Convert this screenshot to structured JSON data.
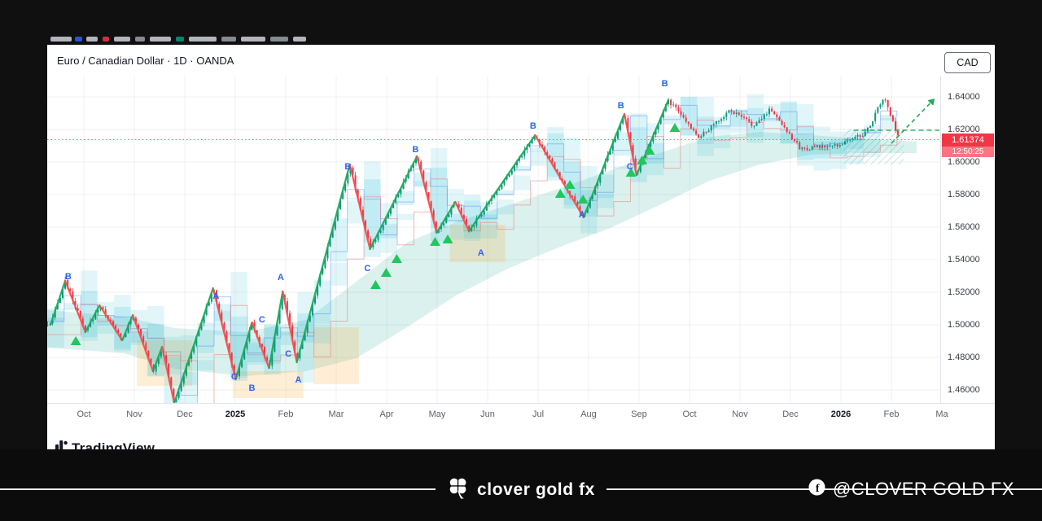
{
  "window": {
    "title": "Euro / Canadian Dollar · 1D · OANDA",
    "currency_button": "CAD"
  },
  "price_scale": {
    "labels": [
      "1.64000",
      "1.62000",
      "1.60000",
      "1.58000",
      "1.56000",
      "1.54000",
      "1.52000",
      "1.50000",
      "1.48000",
      "1.46000"
    ],
    "current_price": "1.61374",
    "countdown": "12:50:25"
  },
  "time_scale": {
    "ticks": [
      {
        "label": "Oct",
        "bold": false
      },
      {
        "label": "Nov",
        "bold": false
      },
      {
        "label": "Dec",
        "bold": false
      },
      {
        "label": "2025",
        "bold": true
      },
      {
        "label": "Feb",
        "bold": false
      },
      {
        "label": "Mar",
        "bold": false
      },
      {
        "label": "Apr",
        "bold": false
      },
      {
        "label": "May",
        "bold": false
      },
      {
        "label": "Jun",
        "bold": false
      },
      {
        "label": "Jul",
        "bold": false
      },
      {
        "label": "Aug",
        "bold": false
      },
      {
        "label": "Sep",
        "bold": false
      },
      {
        "label": "Oct",
        "bold": false
      },
      {
        "label": "Nov",
        "bold": false
      },
      {
        "label": "Dec",
        "bold": false
      },
      {
        "label": "2026",
        "bold": true
      },
      {
        "label": "Feb",
        "bold": false
      },
      {
        "label": "Ma",
        "bold": false
      }
    ]
  },
  "tv_logo_text": "TradingView",
  "footer": {
    "brand": "clover gold fx",
    "handle": "@CLOVER GOLD FX"
  },
  "colors": {
    "up": "#089981",
    "down": "#f23645",
    "zig_up": "#1faa59",
    "zig_down": "#ef5350",
    "label_blue": "#2962ff",
    "marker_green": "#22c55e",
    "badge_red": "#f23645",
    "countdown_red": "#fb7581",
    "cloud_cyan": "rgba(34,187,212,0.13)",
    "cloud_cyan_inner": "rgba(34,187,212,0.16)",
    "cloud_green": "rgba(34,171,148,0.16)",
    "zone_orange": "rgba(255,152,0,0.16)",
    "projection_green": "#1faa59",
    "grid": "rgba(42,46,57,0.07)"
  },
  "chart_data": {
    "type": "candlestick",
    "title": "Euro / Canadian Dollar · 1D · OANDA",
    "symbol": "EUR/CAD",
    "timeframe": "1D",
    "source": "OANDA",
    "quote_currency": "CAD",
    "x_unit": "months_from_oct_2024",
    "ylim": [
      1.452,
      1.653
    ],
    "price_range": [
      1.46,
      1.64
    ],
    "current_price": 1.61374,
    "zigzag": [
      {
        "m": -0.66,
        "p": 1.5
      },
      {
        "m": -0.37,
        "p": 1.527
      },
      {
        "m": 0.03,
        "p": 1.4955
      },
      {
        "m": 0.31,
        "p": 1.512
      },
      {
        "m": 0.76,
        "p": 1.4905
      },
      {
        "m": 0.97,
        "p": 1.506
      },
      {
        "m": 1.37,
        "p": 1.4715
      },
      {
        "m": 1.55,
        "p": 1.4865
      },
      {
        "m": 1.79,
        "p": 1.452
      },
      {
        "m": 2.56,
        "p": 1.5225
      },
      {
        "m": 3.01,
        "p": 1.4665
      },
      {
        "m": 3.33,
        "p": 1.5015
      },
      {
        "m": 3.67,
        "p": 1.4735
      },
      {
        "m": 3.94,
        "p": 1.5205
      },
      {
        "m": 4.22,
        "p": 1.477
      },
      {
        "m": 5.27,
        "p": 1.5985
      },
      {
        "m": 5.67,
        "p": 1.5465
      },
      {
        "m": 6.6,
        "p": 1.6035
      },
      {
        "m": 6.99,
        "p": 1.5565
      },
      {
        "m": 7.36,
        "p": 1.5755
      },
      {
        "m": 7.63,
        "p": 1.5575
      },
      {
        "m": 8.94,
        "p": 1.6165
      },
      {
        "m": 9.9,
        "p": 1.566
      },
      {
        "m": 10.71,
        "p": 1.6295
      },
      {
        "m": 10.95,
        "p": 1.592
      },
      {
        "m": 11.58,
        "p": 1.638
      }
    ],
    "extension": [
      {
        "m": 12.2,
        "p": 1.615
      },
      {
        "m": 12.8,
        "p": 1.632
      },
      {
        "m": 13.3,
        "p": 1.622
      },
      {
        "m": 13.6,
        "p": 1.633
      },
      {
        "m": 14.2,
        "p": 1.608
      },
      {
        "m": 14.9,
        "p": 1.61
      },
      {
        "m": 15.5,
        "p": 1.618
      },
      {
        "m": 15.85,
        "p": 1.64
      },
      {
        "m": 16.15,
        "p": 1.6137
      }
    ],
    "wave_labels": [
      {
        "t": "B",
        "m": -0.31,
        "p": 1.53
      },
      {
        "t": "A",
        "m": 2.62,
        "p": 1.518
      },
      {
        "t": "C",
        "m": 2.98,
        "p": 1.4685
      },
      {
        "t": "C",
        "m": 3.53,
        "p": 1.5035
      },
      {
        "t": "B",
        "m": 3.33,
        "p": 1.4615
      },
      {
        "t": "A",
        "m": 3.9,
        "p": 1.5295
      },
      {
        "t": "C",
        "m": 4.05,
        "p": 1.4825
      },
      {
        "t": "A",
        "m": 4.25,
        "p": 1.4665
      },
      {
        "t": "B",
        "m": 5.23,
        "p": 1.5975
      },
      {
        "t": "C",
        "m": 5.62,
        "p": 1.535
      },
      {
        "t": "B",
        "m": 6.57,
        "p": 1.608
      },
      {
        "t": "A",
        "m": 7.87,
        "p": 1.5445
      },
      {
        "t": "B",
        "m": 8.9,
        "p": 1.6225
      },
      {
        "t": "A",
        "m": 9.87,
        "p": 1.568
      },
      {
        "t": "B",
        "m": 10.64,
        "p": 1.635
      },
      {
        "t": "C",
        "m": 10.82,
        "p": 1.5975
      },
      {
        "t": "B",
        "m": 11.51,
        "p": 1.6485
      }
    ],
    "buy_markers": [
      {
        "m": -0.16,
        "p": 1.49
      },
      {
        "m": 5.78,
        "p": 1.5245
      },
      {
        "m": 5.99,
        "p": 1.532
      },
      {
        "m": 6.2,
        "p": 1.5405
      },
      {
        "m": 6.96,
        "p": 1.551
      },
      {
        "m": 7.21,
        "p": 1.5525
      },
      {
        "m": 9.44,
        "p": 1.5805
      },
      {
        "m": 9.63,
        "p": 1.586
      },
      {
        "m": 9.89,
        "p": 1.577
      },
      {
        "m": 10.84,
        "p": 1.5935
      },
      {
        "m": 11.06,
        "p": 1.601
      },
      {
        "m": 11.21,
        "p": 1.607
      },
      {
        "m": 11.71,
        "p": 1.621
      }
    ],
    "clouds": {
      "green": [
        {
          "m": -0.72,
          "top": 1.509,
          "bot": 1.486
        },
        {
          "m": 0.8,
          "top": 1.505,
          "bot": 1.4825
        },
        {
          "m": 1.8,
          "top": 1.498,
          "bot": 1.473
        },
        {
          "m": 3.2,
          "top": 1.4955,
          "bot": 1.4685
        },
        {
          "m": 4.4,
          "top": 1.503,
          "bot": 1.4715
        },
        {
          "m": 5.4,
          "top": 1.5265,
          "bot": 1.4795
        },
        {
          "m": 6.4,
          "top": 1.5505,
          "bot": 1.4985
        },
        {
          "m": 7.4,
          "top": 1.5635,
          "bot": 1.5185
        },
        {
          "m": 8.4,
          "top": 1.5735,
          "bot": 1.5345
        },
        {
          "m": 9.4,
          "top": 1.5835,
          "bot": 1.5475
        },
        {
          "m": 10.4,
          "top": 1.5945,
          "bot": 1.559
        },
        {
          "m": 11.4,
          "top": 1.6055,
          "bot": 1.5735
        },
        {
          "m": 12.4,
          "top": 1.6155,
          "bot": 1.5885
        },
        {
          "m": 13.4,
          "top": 1.6185,
          "bot": 1.5985
        },
        {
          "m": 14.4,
          "top": 1.6165,
          "bot": 1.6045
        },
        {
          "m": 15.4,
          "top": 1.6145,
          "bot": 1.6055
        },
        {
          "m": 16.5,
          "top": 1.6125,
          "bot": 1.6055
        }
      ],
      "cyan": {
        "lag": 0.35,
        "up": 0.01,
        "down": 0.014,
        "inner_up": 0.0045,
        "inner_down": 0.007,
        "step": 0.33
      }
    },
    "orange_zones": [
      {
        "m0": 1.05,
        "m1": 2.15,
        "top": 1.4905,
        "bot": 1.4625
      },
      {
        "m0": 2.95,
        "m1": 4.35,
        "top": 1.4715,
        "bot": 1.455
      },
      {
        "m0": 4.55,
        "m1": 5.45,
        "top": 1.4985,
        "bot": 1.4635
      },
      {
        "m0": 7.25,
        "m1": 8.35,
        "top": 1.5615,
        "bot": 1.5385
      }
    ],
    "hatch_zone": {
      "m0": 15.05,
      "m1": 16.25,
      "top": 1.6205,
      "bot": 1.5985
    },
    "projection": {
      "h_line": {
        "m0": 15.25,
        "m1": 16.95,
        "p": 1.6195
      },
      "arrow": {
        "m0": 16.0,
        "p0": 1.6115,
        "m1": 16.78,
        "p1": 1.6365
      }
    }
  }
}
